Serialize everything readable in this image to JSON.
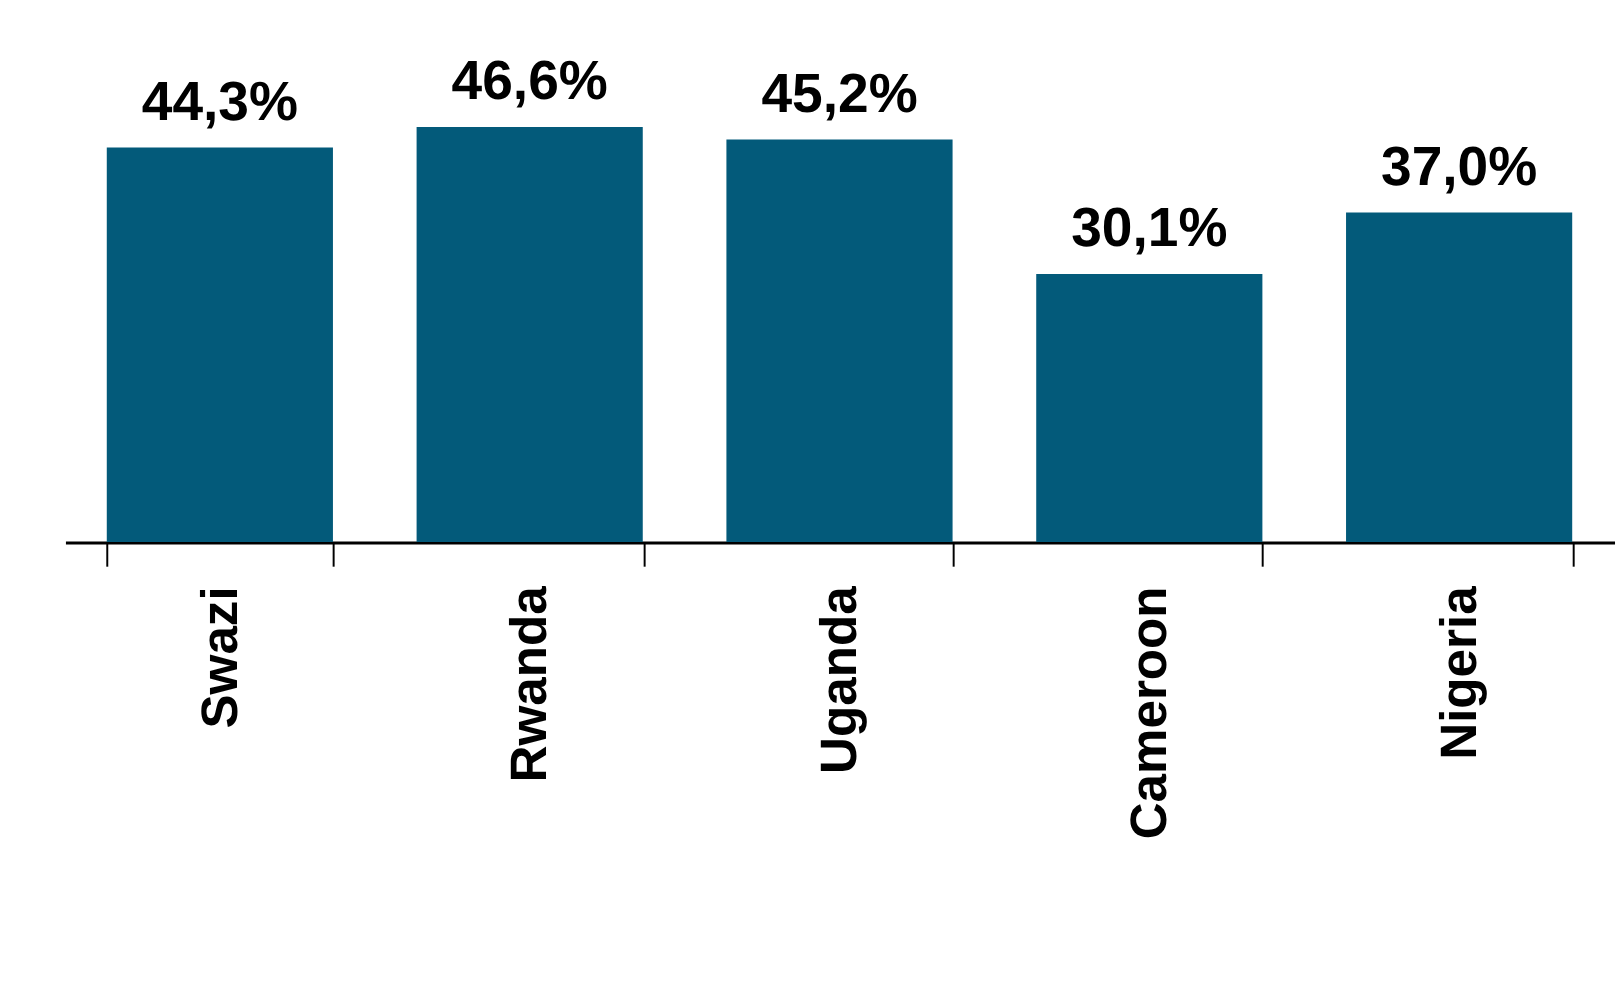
{
  "chart_data": {
    "type": "bar",
    "categories": [
      "Swazi",
      "Rwanda",
      "Uganda",
      "Cameroon",
      "Nigeria"
    ],
    "values": [
      44.3,
      46.6,
      45.2,
      30.1,
      37.0
    ],
    "value_labels": [
      "44,3%",
      "46,6%",
      "45,2%",
      "30,1%",
      "37,0%"
    ],
    "color": "#035a7a",
    "grid": false
  }
}
